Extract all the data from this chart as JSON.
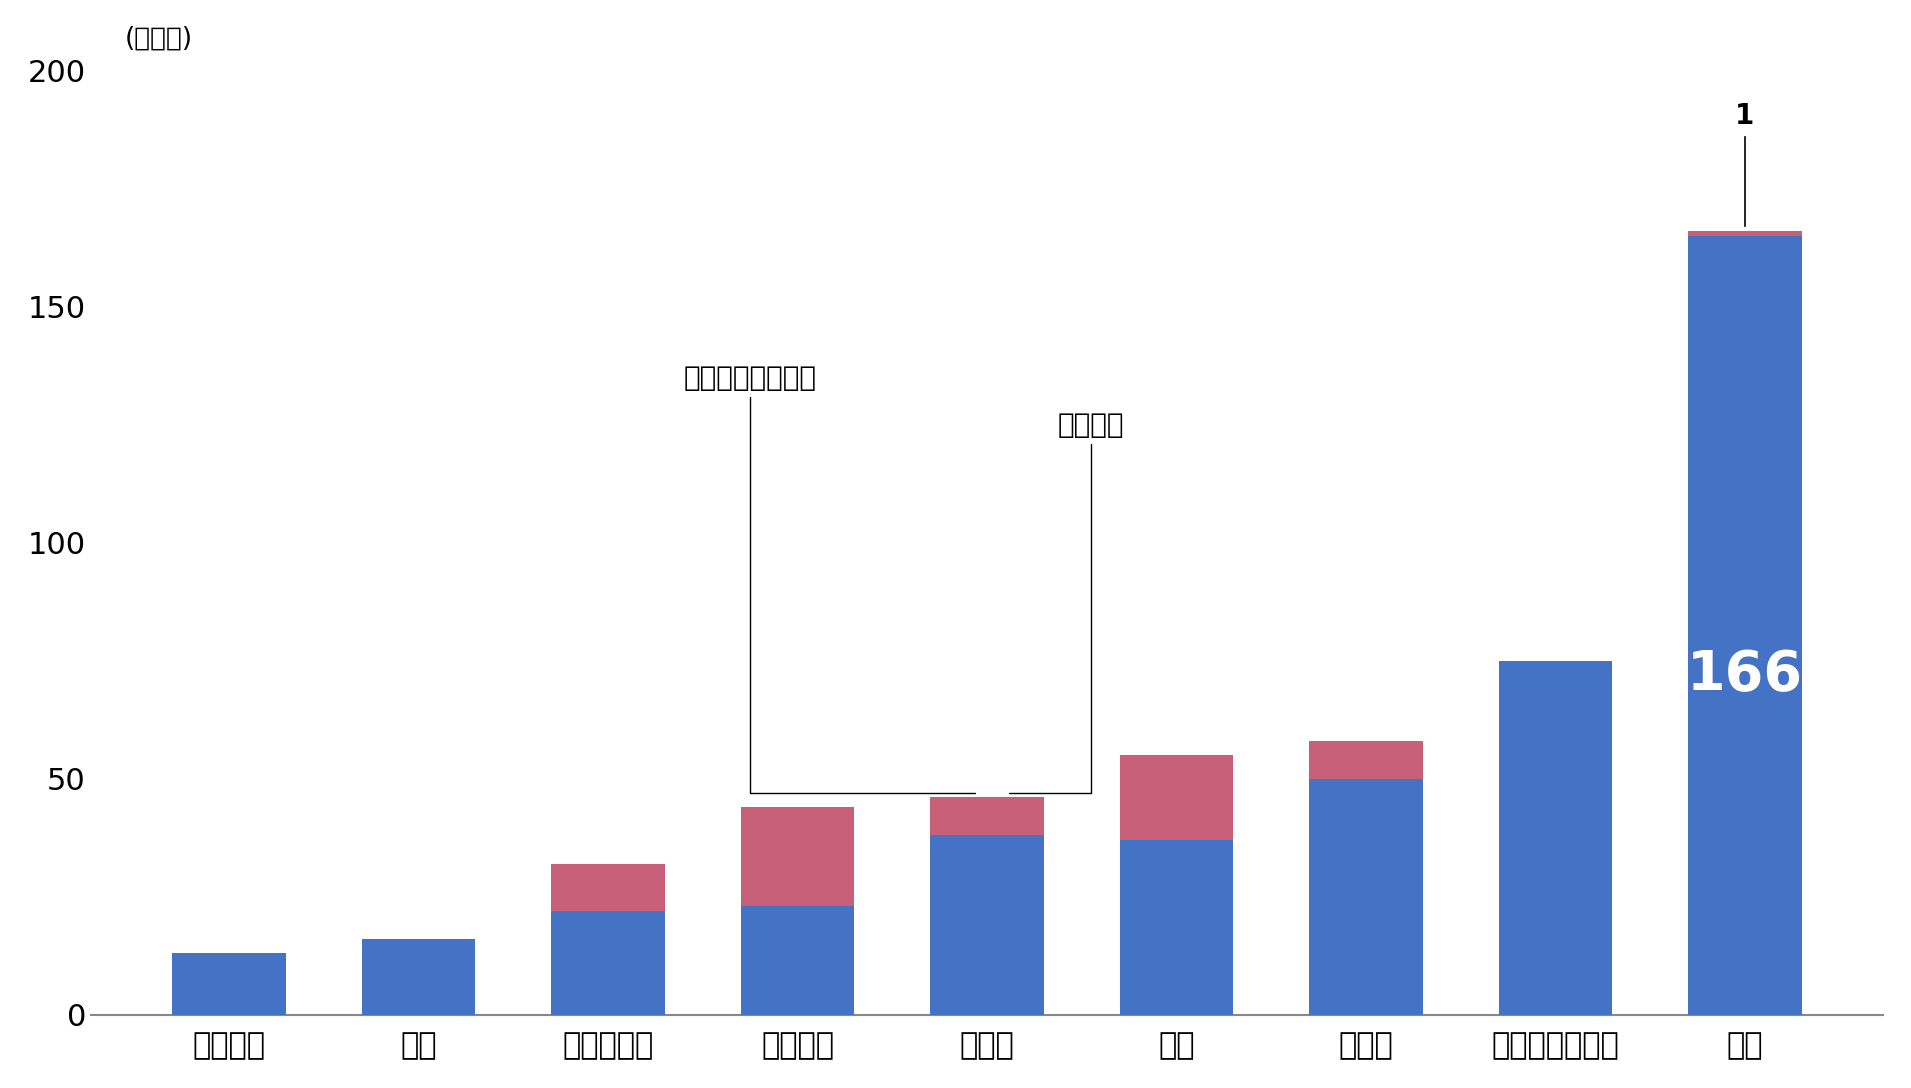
{
  "categories": [
    "イタリア",
    "米国",
    "デンマーク",
    "フランス",
    "カナダ",
    "英国",
    "ドイツ",
    "オーストラリア",
    "日本"
  ],
  "local_values": [
    13,
    16,
    22,
    23,
    38,
    37,
    50,
    75,
    165
  ],
  "national_values": [
    0,
    0,
    10,
    21,
    8,
    18,
    8,
    0,
    1
  ],
  "blue_color": "#4472C4",
  "pink_color": "#C9607A",
  "ylim_min": 0,
  "ylim_max": 200,
  "yticks": [
    0,
    50,
    100,
    150,
    200
  ],
  "ylabel_text": "(実施数)",
  "annotation_local": "地方自治体が実施",
  "annotation_national": "国が実施",
  "label_166": "166",
  "label_1": "1",
  "background_color": "#ffffff",
  "bar_width": 0.6
}
